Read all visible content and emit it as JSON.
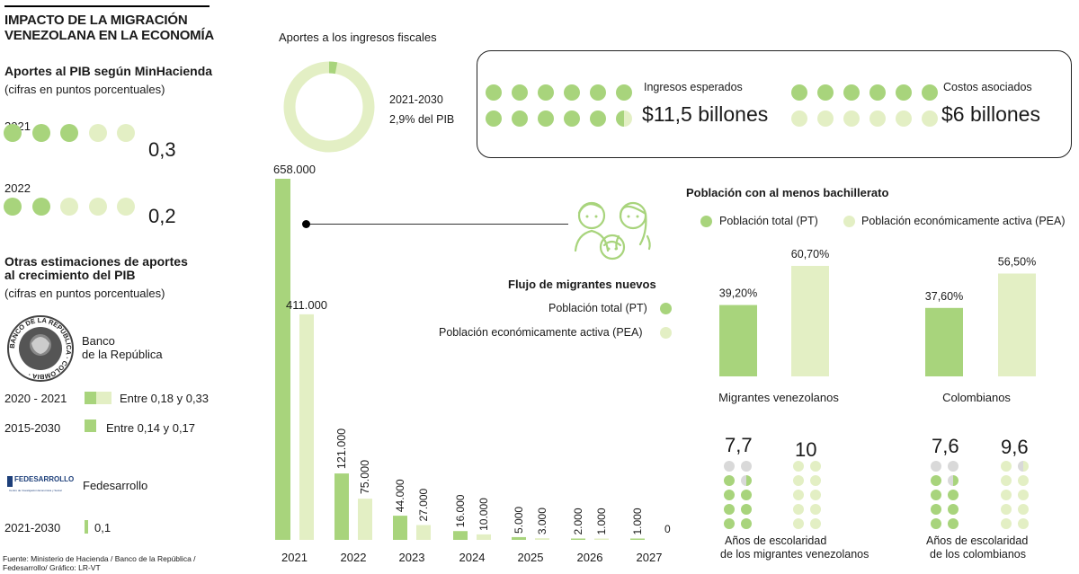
{
  "colors": {
    "dark_green": "#a8d47c",
    "light_green": "#e3efc4",
    "grey": "#d9d9d9",
    "rule": "#000000"
  },
  "title": {
    "line1": "IMPACTO DE LA MIGRACIÓN",
    "line2": "VENEZOLANA EN LA ECONOMÍA"
  },
  "pib": {
    "heading": "Aportes al PIB según MinHacienda",
    "sub": "(cifras en puntos porcentuales)",
    "rows": [
      {
        "year": "2021",
        "value": "0,3",
        "filled_dots": 3,
        "total_dots": 5
      },
      {
        "year": "2022",
        "value": "0,2",
        "filled_dots": 2,
        "total_dots": 5
      }
    ]
  },
  "otras": {
    "heading_line1": "Otras estimaciones de aportes",
    "heading_line2": "al crecimiento del PIB",
    "sub": "(cifras en puntos porcentuales)",
    "banco": {
      "name_line1": "Banco",
      "name_line2": "de la República",
      "seal_text": "BANCO DE LA REPÚBLICA · COLOMBIA ·"
    },
    "banco_rows": [
      {
        "period": "2020 - 2021",
        "text": "Entre 0,18 y 0,33"
      },
      {
        "period": "2015-2030",
        "text": "Entre 0,14 y 0,17"
      }
    ],
    "fedesarrollo": {
      "name": "Fedesarrollo",
      "logo_text": "FEDESARROLLO",
      "logo_sub": "Centro de Investigación Económica y Social",
      "period": "2021-2030",
      "value": "0,1"
    }
  },
  "source": {
    "line1": "Fuente: Ministerio de Hacienda / Banco de la República /",
    "line2": "Fedesarrollo/ Gráfico: LR-VT"
  },
  "fiscal": {
    "heading": "Aportes a los ingresos fiscales",
    "period": "2021-2030",
    "share_text": "2,9% del PIB",
    "share": 0.029,
    "ingresos": {
      "label": "Ingresos esperados",
      "value": "$11,5 billones",
      "dots": 12,
      "filled": 11.5
    },
    "costos": {
      "label": "Costos asociados",
      "value": "$6 billones",
      "dots": 12,
      "filled": 6
    }
  },
  "flujo": {
    "title": "Flujo de migrantes nuevos",
    "legend_pt": "Población total (PT)",
    "legend_pea": "Población económicamente activa (PEA)"
  },
  "poblacion": {
    "title": "Población con al menos bachillerato",
    "legend_pt": "Población total (PT)",
    "legend_pea": "Población económicamente activa (PEA)"
  },
  "escolaridad": {
    "groups": [
      {
        "pt_value": "7,7",
        "pea_value": "10",
        "pt": 7.7,
        "pea": 10,
        "label_line1": "Años de escolaridad",
        "label_line2": "de los migrantes venezolanos"
      },
      {
        "pt_value": "7,6",
        "pea_value": "9,6",
        "pt": 7.6,
        "pea": 9.6,
        "label_line1": "Años de escolaridad",
        "label_line2": "de los colombianos"
      }
    ]
  },
  "chart_data": [
    {
      "type": "bar",
      "title": "Flujo de migrantes nuevos",
      "categories": [
        "2021",
        "2022",
        "2023",
        "2024",
        "2025",
        "2026",
        "2027"
      ],
      "series": [
        {
          "name": "Población total (PT)",
          "values": [
            658000,
            121000,
            44000,
            16000,
            5000,
            2000,
            1000
          ],
          "labels": [
            "658.000",
            "121.000",
            "44.000",
            "16.000",
            "5.000",
            "2.000",
            "1.000"
          ]
        },
        {
          "name": "Población económicamente activa (PEA)",
          "values": [
            411000,
            75000,
            27000,
            10000,
            3000,
            1000,
            0
          ],
          "labels": [
            "411.000",
            "75.000",
            "27.000",
            "10.000",
            "3.000",
            "1.000",
            "0"
          ]
        }
      ],
      "ylim": [
        0,
        658000
      ]
    },
    {
      "type": "bar",
      "title": "Población con al menos bachillerato",
      "categories": [
        "Migrantes venezolanos",
        "Colombianos"
      ],
      "series": [
        {
          "name": "Población total (PT)",
          "values": [
            39.2,
            37.6
          ],
          "labels": [
            "39,20%",
            "37,60%"
          ]
        },
        {
          "name": "Población económicamente activa (PEA)",
          "values": [
            60.7,
            56.5
          ],
          "labels": [
            "60,70%",
            "56,50%"
          ]
        }
      ],
      "ylim": [
        0,
        60.7
      ]
    }
  ]
}
